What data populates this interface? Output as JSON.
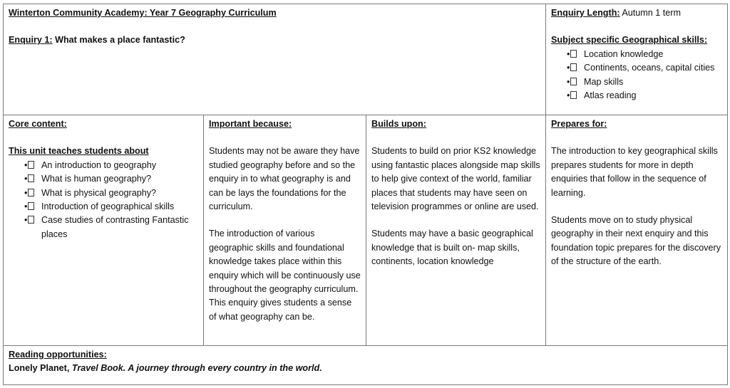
{
  "header": {
    "title": "Winterton Community Academy: Year 7 Geography Curriculum",
    "enquiry_label": "Enquiry 1:",
    "enquiry_title": "What makes a place fantastic?",
    "length_label": "Enquiry Length:",
    "length_value": "Autumn 1 term",
    "skills_heading": "Subject specific Geographical skills:",
    "skills": [
      "Location knowledge",
      "Continents, oceans, capital cities",
      "Map skills",
      "Atlas reading"
    ]
  },
  "core": {
    "heading": "Core content:",
    "subheading": "This unit teaches students about",
    "items": [
      "An introduction to geography",
      "What is human geography?",
      "What is physical geography?",
      "Introduction of geographical skills",
      "Case studies of contrasting Fantastic places"
    ]
  },
  "important": {
    "heading": "Important because:",
    "paragraphs": [
      "Students may not be aware they have studied geography before and so the enquiry in to what geography is and can be lays the foundations for the curriculum.",
      "The introduction of various geographic skills and foundational knowledge takes place within this enquiry which will be continuously use throughout the geography curriculum. This enquiry gives students a sense of what geography can be."
    ]
  },
  "builds": {
    "heading": "Builds upon:",
    "paragraphs": [
      "Students to build on prior KS2 knowledge using fantastic places alongside map skills to help give context of the world, familiar places that students may have seen on television programmes or online are used.",
      "Students may have a basic geographical knowledge that is built on- map skills, continents, location knowledge"
    ]
  },
  "prepares": {
    "heading": "Prepares for:",
    "paragraphs": [
      "The introduction to key geographical skills prepares students for more in depth enquiries that follow in the sequence of learning.",
      "Students move on to study physical geography in their next enquiry and this foundation topic prepares for the discovery of the structure of the earth."
    ]
  },
  "reading": {
    "heading": "Reading opportunities:",
    "author": "Lonely Planet,",
    "book": "Travel Book. A journey through every country in the world."
  }
}
